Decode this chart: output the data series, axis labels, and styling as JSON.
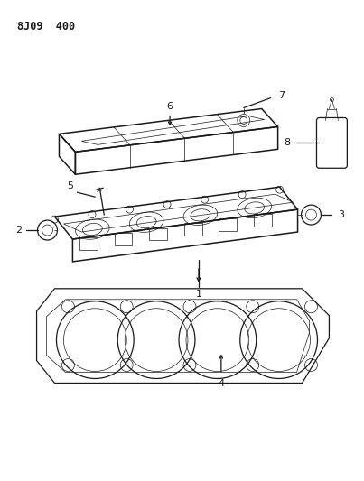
{
  "title": "8J09 400",
  "background_color": "#ffffff",
  "line_color": "#1a1a1a",
  "figsize": [
    4.03,
    5.33
  ],
  "dpi": 100,
  "lw_main": 0.9,
  "lw_thin": 0.5,
  "lw_thick": 1.1
}
